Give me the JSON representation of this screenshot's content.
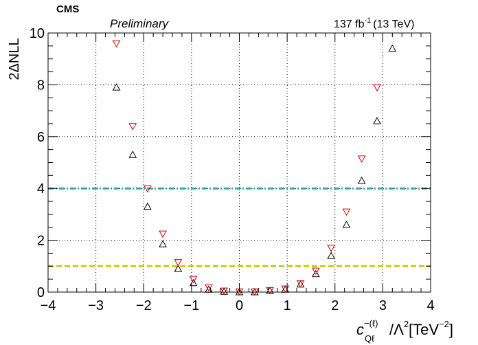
{
  "header": {
    "experiment": "CMS",
    "status": "Preliminary",
    "luminosity_value": "137 fb",
    "luminosity_exp": "-1",
    "energy": "(13 TeV)"
  },
  "chart_data": {
    "type": "scatter",
    "title": "",
    "ylabel": "2ΔNLL",
    "xlabel": {
      "base": "c",
      "superscript": "−(ℓ)",
      "subscript": "Qℓ",
      "rest": "/Λ",
      "rest_exp": "2",
      "unit_open": "[TeV",
      "unit_exp": "−2",
      "unit_close": "]"
    },
    "xlim": [
      -4,
      4
    ],
    "ylim": [
      0,
      10
    ],
    "x_ticks": [
      -4,
      -3,
      -2,
      -1,
      0,
      1,
      2,
      3,
      4
    ],
    "x_tick_labels": [
      "−4",
      "−3",
      "−2",
      "−1",
      "0",
      "1",
      "2",
      "3",
      "4"
    ],
    "y_ticks": [
      0,
      2,
      4,
      6,
      8,
      10
    ],
    "y_tick_labels": [
      "0",
      "2",
      "4",
      "6",
      "8",
      "10"
    ],
    "grid": true,
    "series": [
      {
        "marker": "triangle-up",
        "color": "#000000",
        "x": [
          -2.57,
          -2.23,
          -1.92,
          -1.6,
          -1.28,
          -0.96,
          -0.64,
          -0.32,
          0.0,
          0.32,
          0.64,
          0.96,
          1.28,
          1.6,
          1.92,
          2.24,
          2.56,
          2.88,
          3.2
        ],
        "y": [
          7.9,
          5.3,
          3.3,
          1.85,
          0.9,
          0.35,
          0.1,
          0.02,
          0.0,
          0.0,
          0.05,
          0.1,
          0.3,
          0.7,
          1.4,
          2.6,
          4.3,
          6.6,
          9.4
        ]
      },
      {
        "marker": "triangle-down",
        "color": "#cc0000",
        "x": [
          -2.57,
          -2.23,
          -1.92,
          -1.6,
          -1.28,
          -0.96,
          -0.64,
          -0.32,
          0.0,
          0.32,
          0.64,
          0.96,
          1.28,
          1.6,
          1.92,
          2.24,
          2.56,
          2.88
        ],
        "y": [
          9.6,
          6.4,
          4.0,
          2.25,
          1.15,
          0.5,
          0.18,
          0.05,
          0.02,
          0.02,
          0.07,
          0.13,
          0.33,
          0.82,
          1.7,
          3.1,
          5.15,
          7.9
        ]
      }
    ],
    "reference_lines": [
      {
        "y": 4,
        "color": "#33aaaa",
        "style": "dash-dot"
      },
      {
        "y": 1,
        "color": "#cccc00",
        "style": "dashed"
      }
    ]
  }
}
